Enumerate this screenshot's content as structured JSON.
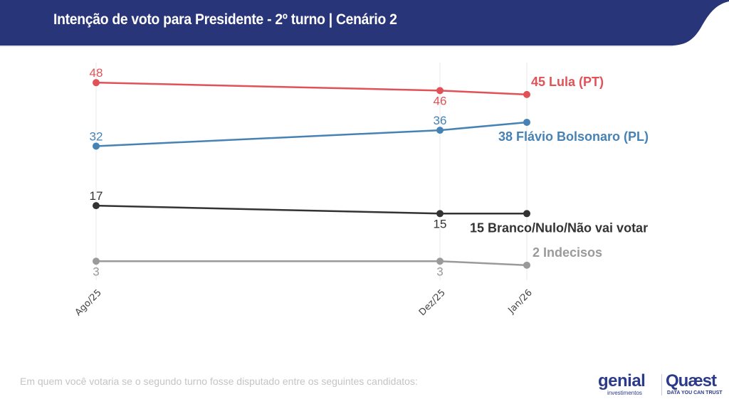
{
  "header": {
    "title": "Intenção de voto para Presidente - 2º turno | Cenário 2",
    "background_color": "#283579"
  },
  "footnote": "Em quem você votaria se o segundo turno fosse disputado entre os seguintes candidatos:",
  "logos": {
    "genial": "genial",
    "genial_sub": "investimentos",
    "quaest": "Quæst",
    "quaest_sub": "DATA YOU CAN TRUST"
  },
  "chart_data": {
    "type": "line",
    "title": "Intenção de voto para Presidente - 2º turno | Cenário 2",
    "xlabel": "",
    "ylabel": "",
    "categories": [
      "Ago/25",
      "Dez/25",
      "Jan/26"
    ],
    "grid": "vertical",
    "legend": "end-of-line labels",
    "ylim": [
      0,
      50
    ],
    "series": [
      {
        "name": "Lula (PT)",
        "color": "#e05257",
        "values": [
          48,
          46,
          45
        ],
        "end_label": "45 Lula (PT)",
        "label_positions": [
          "above",
          "below"
        ]
      },
      {
        "name": "Flávio Bolsonaro (PL)",
        "color": "#4682b4",
        "values": [
          32,
          36,
          38
        ],
        "end_label": "38 Flávio Bolsonaro (PL)",
        "label_positions": [
          "above",
          "above"
        ]
      },
      {
        "name": "Branco/Nulo/Não vai votar",
        "color": "#333333",
        "values": [
          17,
          15,
          15
        ],
        "end_label": "15 Branco/Nulo/Não vai votar",
        "label_positions": [
          "above",
          "below"
        ]
      },
      {
        "name": "Indecisos",
        "color": "#9a9a9a",
        "values": [
          3,
          3,
          2
        ],
        "end_label": "2 Indecisos",
        "label_positions": [
          "below",
          "below"
        ]
      }
    ]
  }
}
